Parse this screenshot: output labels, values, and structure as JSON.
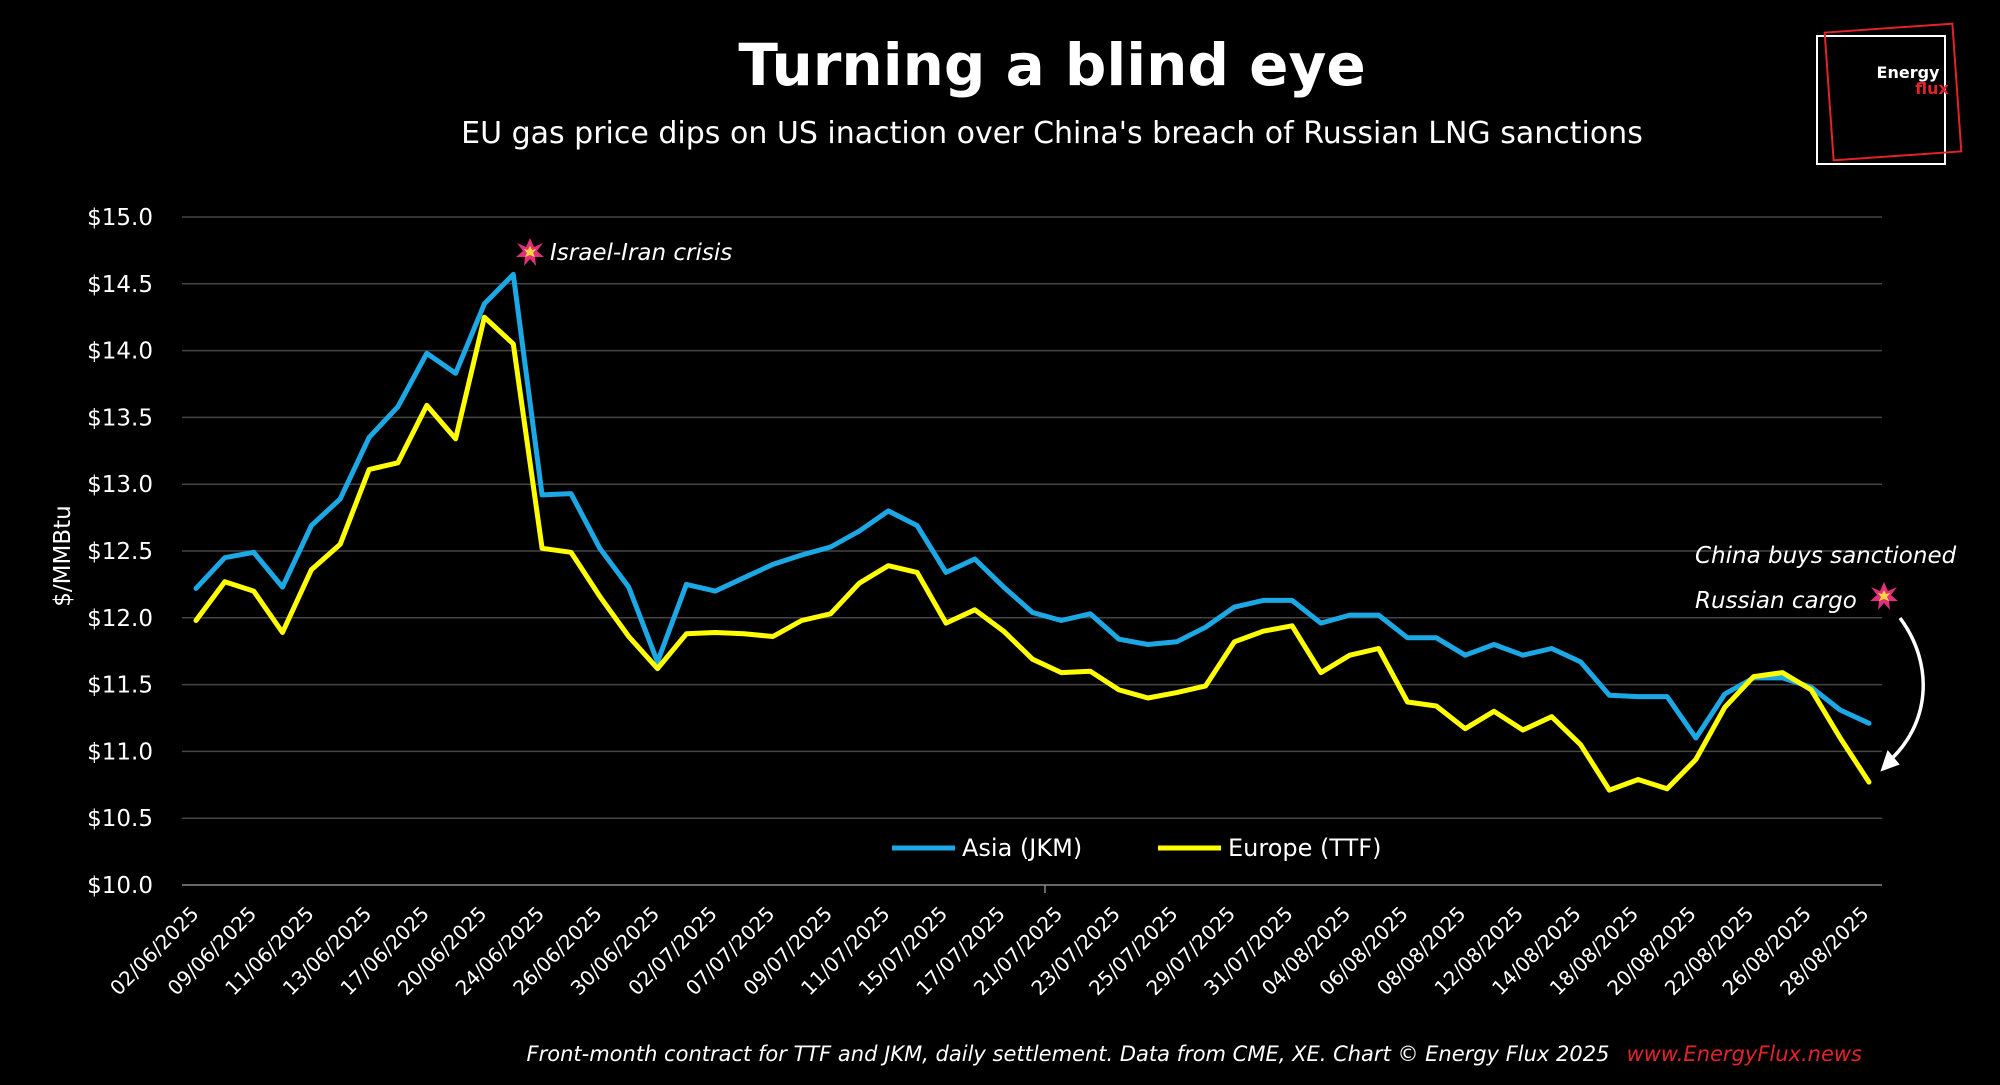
{
  "colors": {
    "background": "#000000",
    "asia": "#1CA8E4",
    "europe": "#FFFF00",
    "grid": "#444444",
    "brand_red": "#E2232A"
  },
  "logo": {
    "line1": "Energy",
    "line2": "flux"
  },
  "chart_data": {
    "type": "line",
    "title": "Turning a blind eye",
    "subtitle": "EU gas price dips on US inaction over China's breach of Russian LNG sanctions",
    "ylabel": "$/MMBtu",
    "xlabel": "",
    "ylim": [
      10.0,
      15.0
    ],
    "y_ticks": [
      "$10.0",
      "$10.5",
      "$11.0",
      "$11.5",
      "$12.0",
      "$12.5",
      "$13.0",
      "$13.5",
      "$14.0",
      "$14.5",
      "$15.0"
    ],
    "grid": true,
    "legend": "bottom-center",
    "x_tick_labels": [
      "02/06/2025",
      "09/06/2025",
      "11/06/2025",
      "13/06/2025",
      "17/06/2025",
      "20/06/2025",
      "24/06/2025",
      "26/06/2025",
      "30/06/2025",
      "02/07/2025",
      "07/07/2025",
      "09/07/2025",
      "11/07/2025",
      "15/07/2025",
      "17/07/2025",
      "21/07/2025",
      "23/07/2025",
      "25/07/2025",
      "29/07/2025",
      "31/07/2025",
      "04/08/2025",
      "06/08/2025",
      "08/08/2025",
      "12/08/2025",
      "14/08/2025",
      "18/08/2025",
      "20/08/2025",
      "22/08/2025",
      "26/08/2025",
      "28/08/2025"
    ],
    "series": [
      {
        "name": "Asia (JKM)",
        "values": [
          12.22,
          12.45,
          12.49,
          12.23,
          12.69,
          12.89,
          13.35,
          13.58,
          13.98,
          13.83,
          14.35,
          14.57,
          12.92,
          12.93,
          12.52,
          12.23,
          11.67,
          12.25,
          12.2,
          12.3,
          12.4,
          12.47,
          12.53,
          12.65,
          12.8,
          12.69,
          12.34,
          12.44,
          12.23,
          12.04,
          11.98,
          12.03,
          11.84,
          11.8,
          11.82,
          11.93,
          12.08,
          12.13,
          12.13,
          11.96,
          12.02,
          12.02,
          11.85,
          11.85,
          11.72,
          11.8,
          11.72,
          11.77,
          11.67,
          11.42,
          11.41,
          11.41,
          11.1,
          11.43,
          11.55,
          11.55,
          11.48,
          11.31,
          11.21
        ]
      },
      {
        "name": "Europe (TTF)",
        "values": [
          11.98,
          12.27,
          12.2,
          11.89,
          12.36,
          12.55,
          13.11,
          13.16,
          13.59,
          13.34,
          14.25,
          14.05,
          12.52,
          12.49,
          12.16,
          11.86,
          11.62,
          11.88,
          11.89,
          11.88,
          11.86,
          11.98,
          12.03,
          12.26,
          12.39,
          12.34,
          11.96,
          12.06,
          11.9,
          11.69,
          11.59,
          11.6,
          11.46,
          11.4,
          11.44,
          11.49,
          11.82,
          11.9,
          11.94,
          11.59,
          11.72,
          11.77,
          11.37,
          11.34,
          11.17,
          11.3,
          11.16,
          11.26,
          11.05,
          10.71,
          10.79,
          10.72,
          10.94,
          11.33,
          11.56,
          11.59,
          11.46,
          11.1,
          10.77
        ]
      }
    ],
    "annotations": [
      {
        "text": "Israel-Iran crisis",
        "at_index": 11,
        "icon": "explosion-icon"
      },
      {
        "line1": "China buys sanctioned",
        "line2": "Russian cargo",
        "icon": "explosion-icon"
      }
    ],
    "footer": "Front-month contract for TTF and JKM, daily settlement. Data from CME, XE. Chart © Energy Flux 2025",
    "footer_link": "www.EnergyFlux.news"
  }
}
